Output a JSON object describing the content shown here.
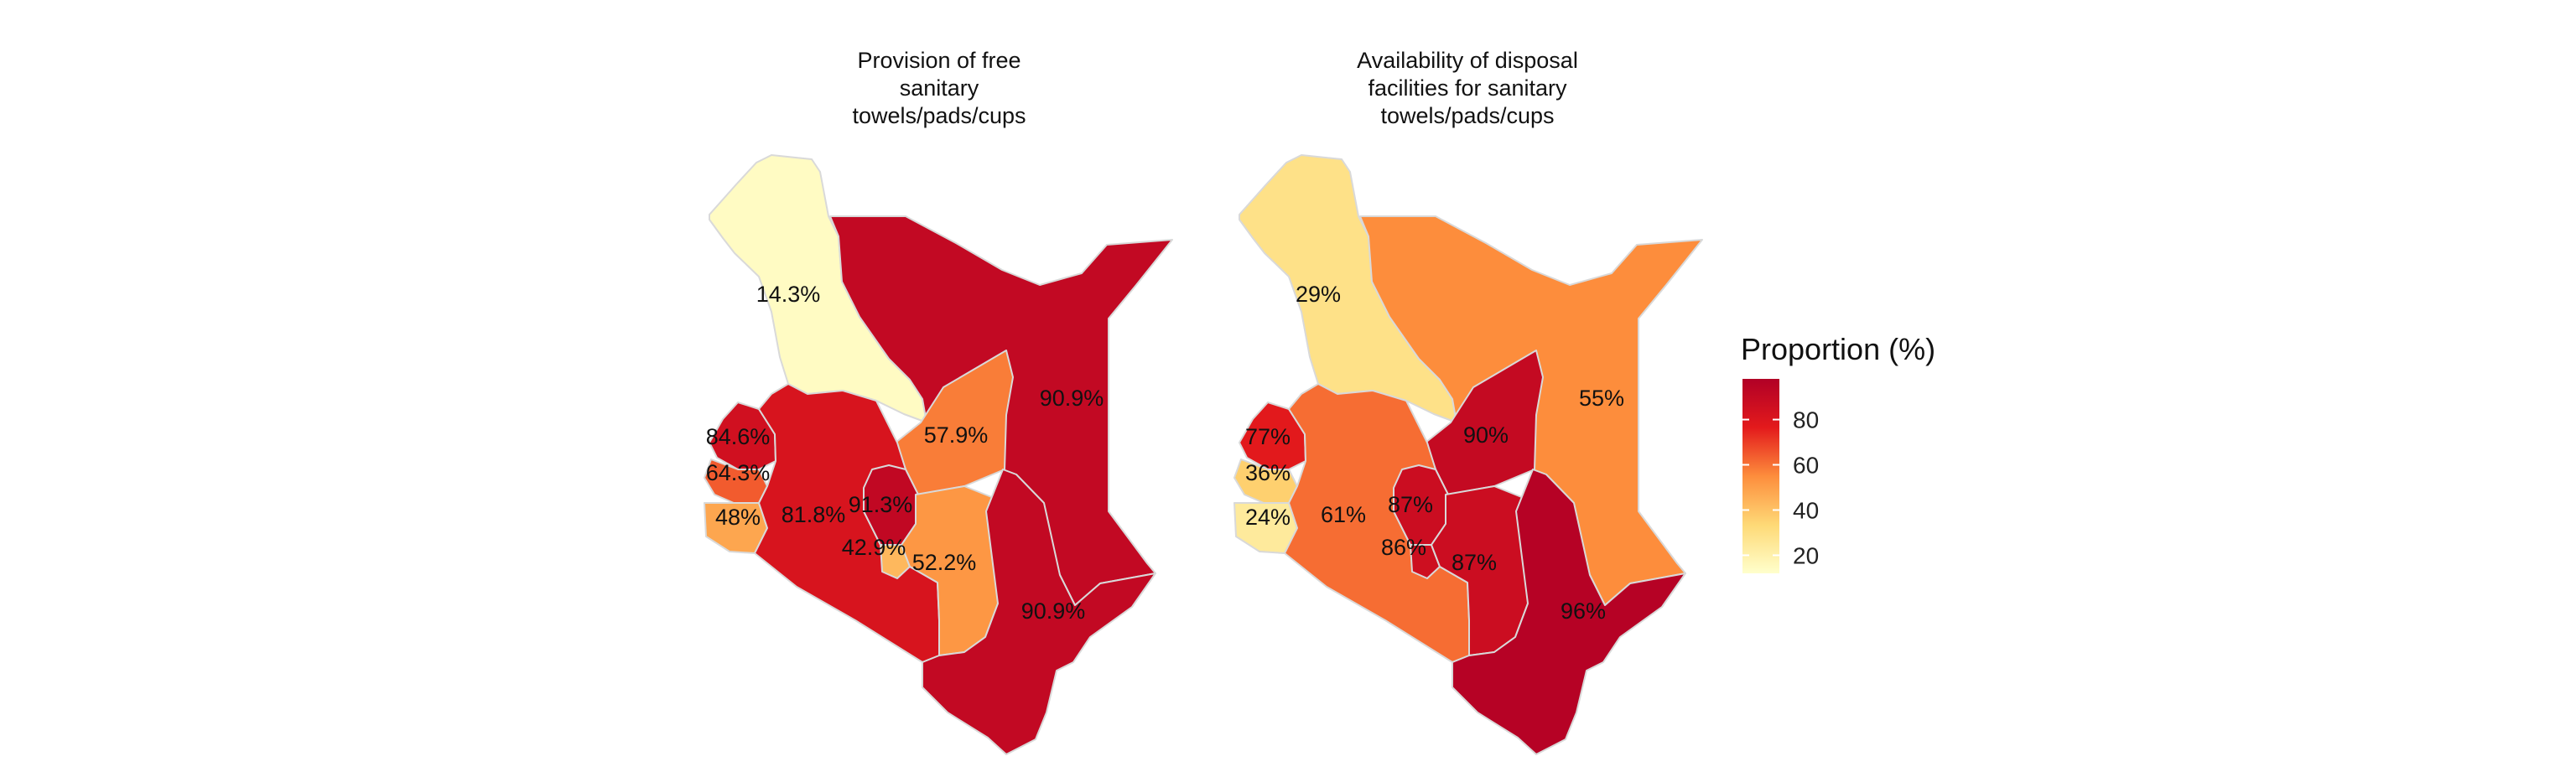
{
  "legend": {
    "title": "Proportion (%)",
    "range": [
      12,
      98
    ],
    "ticks": [
      20,
      40,
      60,
      80
    ],
    "colors": [
      "#ffffcc",
      "#fed976",
      "#fd8d3c",
      "#e31a1c",
      "#b10026"
    ]
  },
  "maps": [
    {
      "title": "Provision of free sanitary towels/pads/cups",
      "title_lines": [
        "Provision of free",
        "sanitary",
        "towels/pads/cups"
      ],
      "regions": [
        {
          "id": "north-west",
          "value": 14.3,
          "label": "14.3%"
        },
        {
          "id": "north-east",
          "value": 90.9,
          "label": "90.9%"
        },
        {
          "id": "eastern",
          "value": 57.9,
          "label": "57.9%"
        },
        {
          "id": "western",
          "value": 84.6,
          "label": "84.6%"
        },
        {
          "id": "nyanza-central",
          "value": 64.3,
          "label": "64.3%"
        },
        {
          "id": "nyanza-south",
          "value": 48,
          "label": "48%"
        },
        {
          "id": "rift-valley",
          "value": 81.8,
          "label": "81.8%"
        },
        {
          "id": "central",
          "value": 91.3,
          "label": "91.3%"
        },
        {
          "id": "nairobi",
          "value": 42.9,
          "label": "42.9%"
        },
        {
          "id": "lower-eastern",
          "value": 52.2,
          "label": "52.2%"
        },
        {
          "id": "coast",
          "value": 90.9,
          "label": "90.9%"
        }
      ]
    },
    {
      "title": "Availability of disposal facilities for sanitary towels/pads/cups",
      "title_lines": [
        "Availability of disposal",
        "facilities for sanitary",
        "towels/pads/cups"
      ],
      "regions": [
        {
          "id": "north-west",
          "value": 29,
          "label": "29%"
        },
        {
          "id": "north-east",
          "value": 55,
          "label": "55%"
        },
        {
          "id": "eastern",
          "value": 90,
          "label": "90%"
        },
        {
          "id": "western",
          "value": 77,
          "label": "77%"
        },
        {
          "id": "nyanza-central",
          "value": 36,
          "label": "36%"
        },
        {
          "id": "nyanza-south",
          "value": 24,
          "label": "24%"
        },
        {
          "id": "rift-valley",
          "value": 61,
          "label": "61%"
        },
        {
          "id": "central",
          "value": 87,
          "label": "87%"
        },
        {
          "id": "nairobi",
          "value": 86,
          "label": "86%"
        },
        {
          "id": "lower-eastern",
          "value": 87,
          "label": "87%"
        },
        {
          "id": "coast",
          "value": 96,
          "label": "96%"
        }
      ]
    }
  ]
}
